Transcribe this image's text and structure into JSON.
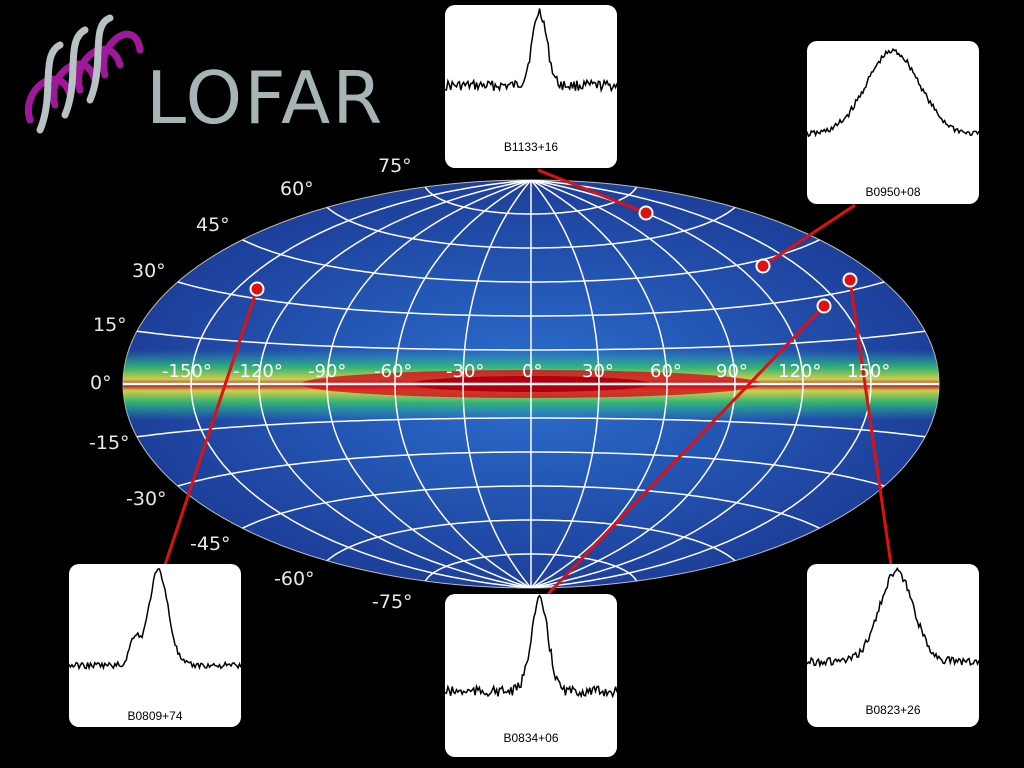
{
  "logo": {
    "text": "LOFAR",
    "helix_color": "#a0189a",
    "text_color": "#a7b4b6"
  },
  "sky_map": {
    "projection": "aitoff",
    "colormap": [
      "#1a2a8a",
      "#1f5fc0",
      "#2aa0c8",
      "#3cc470",
      "#f0e43a",
      "#e8331c",
      "#c00018"
    ],
    "latitude_labels": [
      "75°",
      "60°",
      "45°",
      "30°",
      "15°",
      "0°",
      "-15°",
      "-30°",
      "-45°",
      "-60°",
      "-75°"
    ],
    "longitude_labels": [
      "-150°",
      "-120°",
      "-90°",
      "-60°",
      "-30°",
      "0°",
      "30°",
      "60°",
      "90°",
      "120°",
      "150°"
    ]
  },
  "pulsars": [
    {
      "name": "B1133+16",
      "marker_color": "#e01010"
    },
    {
      "name": "B0950+08",
      "marker_color": "#e01010"
    },
    {
      "name": "B0809+74",
      "marker_color": "#e01010"
    },
    {
      "name": "B0834+06",
      "marker_color": "#e01010"
    },
    {
      "name": "B0823+26",
      "marker_color": "#e01010"
    }
  ]
}
